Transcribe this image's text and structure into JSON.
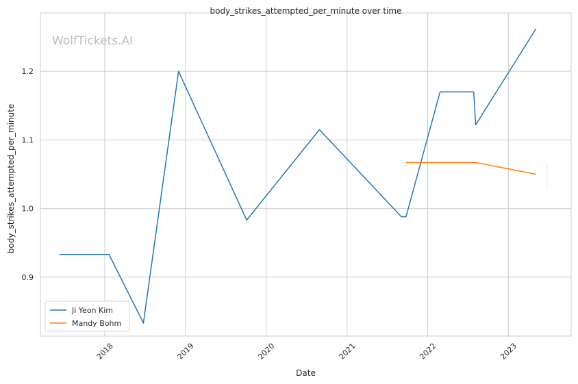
{
  "chart_data": {
    "type": "line",
    "title": "body_strikes_attempted_per_minute over time",
    "xlabel": "Date",
    "ylabel": "body_strikes_attempted_per_minute",
    "watermark": "WolfTickets.AI",
    "x_ticks": [
      "2018",
      "2019",
      "2020",
      "2021",
      "2022",
      "2023"
    ],
    "y_ticks": [
      "0.9",
      "1.0",
      "1.1",
      "1.2"
    ],
    "xlim": [
      "2017-03-16",
      "2023-10-12"
    ],
    "ylim": [
      0.814,
      1.285
    ],
    "grid": true,
    "legend_position": "lower-left",
    "series": [
      {
        "name": "Ji Yeon Kim",
        "color": "#1f77b4",
        "points": [
          {
            "x": "2017-06-10",
            "y": 0.933
          },
          {
            "x": "2018-01-20",
            "y": 0.933
          },
          {
            "x": "2018-06-25",
            "y": 0.833
          },
          {
            "x": "2018-12-01",
            "y": 1.2
          },
          {
            "x": "2019-10-05",
            "y": 0.983
          },
          {
            "x": "2020-08-29",
            "y": 1.115
          },
          {
            "x": "2021-09-04",
            "y": 0.988
          },
          {
            "x": "2021-09-25",
            "y": 0.988
          },
          {
            "x": "2022-02-26",
            "y": 1.17
          },
          {
            "x": "2022-07-28",
            "y": 1.17
          },
          {
            "x": "2022-08-06",
            "y": 1.122
          },
          {
            "x": "2023-05-06",
            "y": 1.262
          }
        ]
      },
      {
        "name": "Mandy Bohm",
        "color": "#ff7f0e",
        "points": [
          {
            "x": "2021-09-25",
            "y": 1.067
          },
          {
            "x": "2022-08-06",
            "y": 1.067
          },
          {
            "x": "2023-05-06",
            "y": 1.05
          }
        ]
      }
    ]
  }
}
